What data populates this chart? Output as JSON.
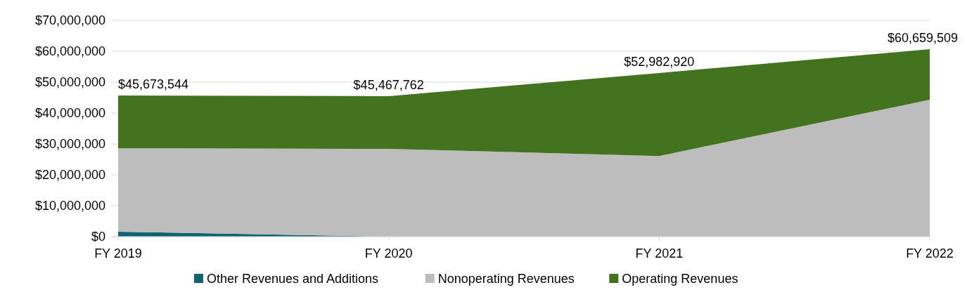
{
  "chart_data": {
    "type": "area",
    "stacked": true,
    "categories": [
      "FY 2019",
      "FY 2020",
      "FY 2021",
      "FY 2022"
    ],
    "series": [
      {
        "name": "Other Revenues and Additions",
        "color": "#0e6370",
        "values": [
          1600000,
          0,
          0,
          0
        ]
      },
      {
        "name": "Nonoperating Revenues",
        "color": "#bcbdbc",
        "values": [
          27000000,
          28400000,
          26100000,
          44300000
        ]
      },
      {
        "name": "Operating Revenues",
        "color": "#43731f",
        "values": [
          17073544,
          17067762,
          26882920,
          16359509
        ]
      }
    ],
    "totals": [
      "$45,673,544",
      "$45,467,762",
      "$52,982,920",
      "$60,659,509"
    ],
    "ylim": [
      0,
      70000000
    ],
    "yticks": [
      {
        "value": 0,
        "label": "$0"
      },
      {
        "value": 10000000,
        "label": "$10,000,000"
      },
      {
        "value": 20000000,
        "label": "$20,000,000"
      },
      {
        "value": 30000000,
        "label": "$30,000,000"
      },
      {
        "value": 40000000,
        "label": "$40,000,000"
      },
      {
        "value": 50000000,
        "label": "$50,000,000"
      },
      {
        "value": 60000000,
        "label": "$60,000,000"
      },
      {
        "value": 70000000,
        "label": "$70,000,000"
      }
    ],
    "grid": "y",
    "legend": "bottom"
  }
}
